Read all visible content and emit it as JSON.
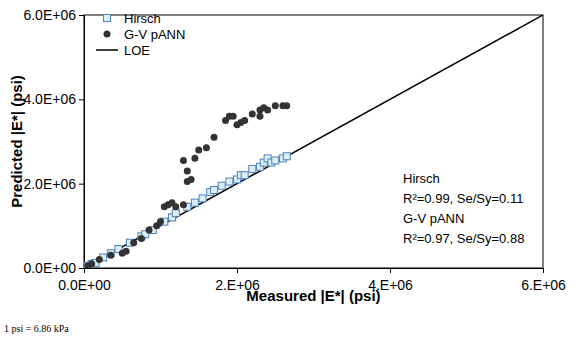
{
  "chart_data": {
    "type": "scatter",
    "x_label": "Measured |E*| (psi)",
    "y_label": "Predicted |E*| (psi)",
    "note": "1 psi = 6.86 kPa",
    "xlim": [
      0,
      6000000
    ],
    "ylim": [
      0,
      6000000
    ],
    "xticks": [
      {
        "value": 0,
        "label": "0.0E+00"
      },
      {
        "value": 2000000,
        "label": "2.E+06"
      },
      {
        "value": 4000000,
        "label": "4.E+06"
      },
      {
        "value": 6000000,
        "label": "6.E+06"
      }
    ],
    "yticks": [
      {
        "value": 0,
        "label": "0.0E+00"
      },
      {
        "value": 2000000,
        "label": "2.0E+06"
      },
      {
        "value": 4000000,
        "label": "4.0E+06"
      },
      {
        "value": 6000000,
        "label": "6.0E+06"
      }
    ],
    "grid": false,
    "legend": "top-left",
    "series": [
      {
        "name": "Hirsch",
        "type": "scatter",
        "marker": "square",
        "color": "#4f81bd",
        "x": [
          50000,
          100000,
          150000,
          250000,
          350000,
          450000,
          600000,
          750000,
          800000,
          900000,
          1050000,
          1150000,
          1200000,
          1350000,
          1450000,
          1550000,
          1650000,
          1700000,
          1800000,
          1900000,
          2000000,
          2050000,
          2100000,
          2200000,
          2300000,
          2350000,
          2400000,
          2450000,
          2500000,
          2600000,
          2650000
        ],
        "values": [
          50000,
          100000,
          120000,
          250000,
          350000,
          450000,
          600000,
          750000,
          800000,
          900000,
          1100000,
          1200000,
          1300000,
          1450000,
          1550000,
          1650000,
          1800000,
          1850000,
          1950000,
          2050000,
          2100000,
          2200000,
          2200000,
          2350000,
          2400000,
          2500000,
          2600000,
          2500000,
          2550000,
          2600000,
          2650000
        ]
      },
      {
        "name": "G-V pANN",
        "type": "scatter",
        "marker": "circle",
        "color": "#333333",
        "x": [
          50000,
          100000,
          200000,
          350000,
          500000,
          550000,
          650000,
          750000,
          850000,
          950000,
          1000000,
          1050000,
          1100000,
          1150000,
          1200000,
          1300000,
          1350000,
          1400000,
          1350000,
          1450000,
          1300000,
          1500000,
          1600000,
          1700000,
          1850000,
          1900000,
          1950000,
          2000000,
          2050000,
          2100000,
          2200000,
          2300000,
          2350000,
          2400000,
          2500000,
          2600000,
          2650000,
          2300000
        ],
        "values": [
          50000,
          100000,
          200000,
          300000,
          350000,
          400000,
          600000,
          700000,
          900000,
          1000000,
          1100000,
          1450000,
          1500000,
          1550000,
          1450000,
          1500000,
          2050000,
          2100000,
          2300000,
          2600000,
          2550000,
          2800000,
          2850000,
          3100000,
          3500000,
          3600000,
          3600000,
          3400000,
          3450000,
          3500000,
          3650000,
          3750000,
          3800000,
          3750000,
          3850000,
          3850000,
          3850000,
          3600000
        ]
      },
      {
        "name": "LOE",
        "type": "line",
        "line_style": "solid",
        "color": "#000000",
        "x": [
          0,
          6000000
        ],
        "values": [
          0,
          6000000
        ]
      }
    ],
    "annotations": [
      {
        "text": "Hirsch"
      },
      {
        "text": "R²=0.99, Se/Sy=0.11"
      },
      {
        "text": "G-V pANN"
      },
      {
        "text": "R²=0.97, Se/Sy=0.88"
      }
    ]
  }
}
